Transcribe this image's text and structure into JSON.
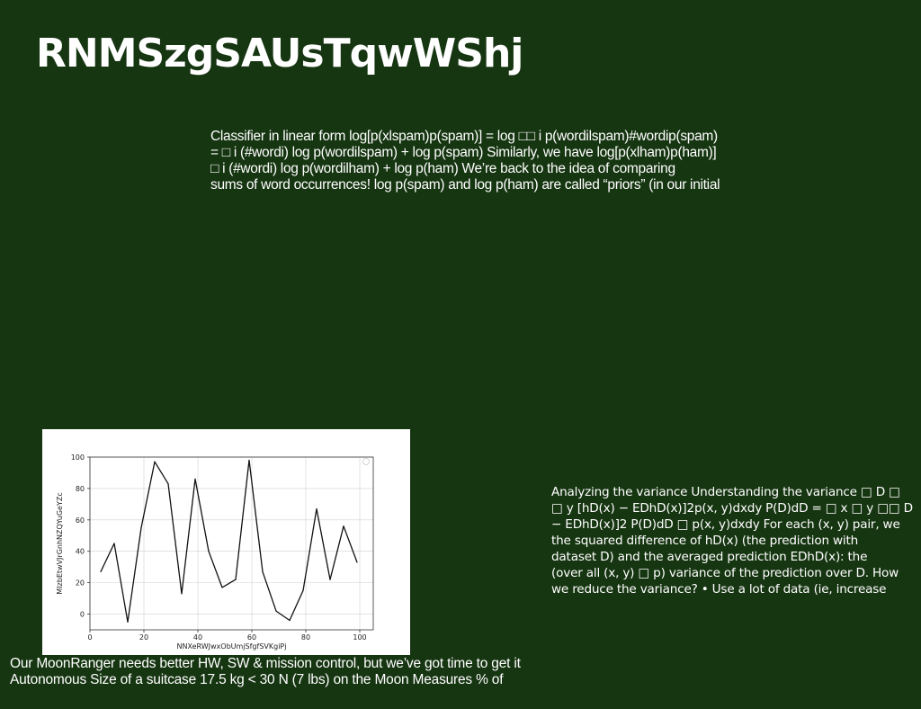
{
  "slide": {
    "title": "RNMSzgSAUsTqwWShj",
    "paragraph1": [
      "Classifier in linear form log[p(xlspam)p(spam)] = log □□ i p(wordilspam)#wordip(spam)",
      "= □ i (#wordi) log p(wordilspam) + log p(spam) Similarly, we have log[p(xlham)p(ham)]",
      "□ i (#wordi) log p(wordilham) + log p(ham) We’re back to the idea of comparing",
      "sums of word occurrences! log p(spam) and log p(ham) are called “priors” (in our initial"
    ],
    "paragraph2": [
      "Analyzing the variance Understanding the variance □ D □",
      "□ y [hD(x) − EDhD(x)]2p(x, y)dxdy P(D)dD = □ x □ y □□ D",
      "− EDhD(x)]2 P(D)dD □ p(x, y)dxdy For each (x, y) pair, we",
      "the squared difference of hD(x) (the prediction with",
      "dataset D) and the averaged prediction EDhD(x): the",
      "(over all (x, y) □ p) variance of the prediction over D. How",
      "we reduce the variance? • Use a lot of data (ie, increase"
    ],
    "paragraph3": [
      "Our MoonRanger needs better HW, SW & mission control, but we’ve got time to get it",
      "Autonomous Size of a suitcase 17.5 kg < 30 N (7 lbs) on the Moon Measures % of"
    ],
    "colors": {
      "background": "#163511",
      "text": "#ffffff",
      "chart_background": "#ffffff",
      "line": "#111111",
      "grid": "#d0d0d0"
    }
  },
  "chart_data": {
    "type": "line",
    "title": "",
    "xlabel": "NNXeRWJwxObUmjSfgfSVKgiPj",
    "ylabel": "MIzbEtwVJrGnhNZQYuGeYZc",
    "xlim": [
      0,
      105
    ],
    "ylim": [
      -10,
      100
    ],
    "xticks": [
      0,
      20,
      40,
      60,
      80,
      100
    ],
    "yticks": [
      0,
      20,
      40,
      60,
      80,
      100
    ],
    "grid": true,
    "series": [
      {
        "x": [
          4,
          9,
          14,
          19,
          24,
          29,
          34,
          39,
          44,
          49,
          54,
          59,
          64,
          69,
          74,
          79,
          84,
          89,
          94,
          99
        ],
        "y": [
          27,
          45,
          -5,
          55,
          97,
          83,
          13,
          86,
          40,
          17,
          22,
          98,
          27,
          2,
          -4,
          15,
          67,
          22,
          56,
          33
        ]
      }
    ]
  }
}
